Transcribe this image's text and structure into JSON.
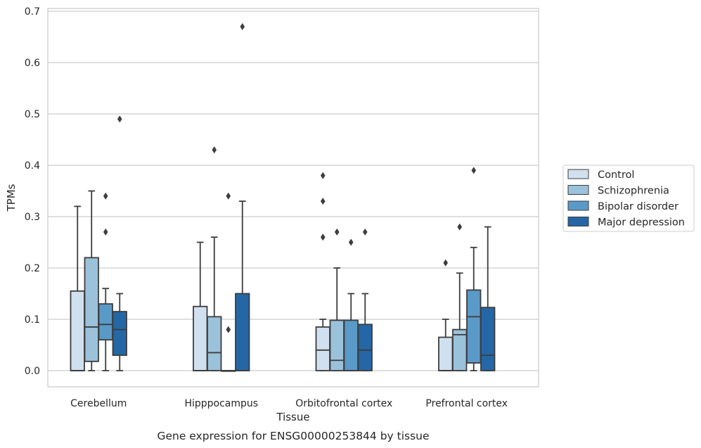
{
  "chart_data": {
    "type": "boxplot",
    "title": "",
    "caption": "Gene expression for ENSG00000253844 by tissue",
    "xlabel": "Tissue",
    "ylabel": "TPMs",
    "ylim": [
      -0.03,
      0.705
    ],
    "yticks": [
      "0.0",
      "0.1",
      "0.2",
      "0.3",
      "0.4",
      "0.5",
      "0.6",
      "0.7"
    ],
    "grid": true,
    "legend_position": "right",
    "categories": [
      "Cerebellum",
      "Hipppocampus",
      "Orbitofrontal cortex",
      "Prefrontal cortex"
    ],
    "series": [
      {
        "name": "Control",
        "color": "#d0e0ef",
        "boxes": [
          {
            "whislo": 0.0,
            "q1": 0.0,
            "med": 0.0,
            "q3": 0.155,
            "whishi": 0.32,
            "fliers": []
          },
          {
            "whislo": 0.0,
            "q1": 0.0,
            "med": 0.0,
            "q3": 0.125,
            "whishi": 0.25,
            "fliers": []
          },
          {
            "whislo": 0.0,
            "q1": 0.0,
            "med": 0.04,
            "q3": 0.085,
            "whishi": 0.1,
            "fliers": [
              0.26,
              0.33,
              0.38
            ]
          },
          {
            "whislo": 0.0,
            "q1": 0.0,
            "med": 0.0,
            "q3": 0.065,
            "whishi": 0.1,
            "fliers": [
              0.21
            ]
          }
        ]
      },
      {
        "name": "Schizophrenia",
        "color": "#9bc2db",
        "boxes": [
          {
            "whislo": 0.0,
            "q1": 0.018,
            "med": 0.085,
            "q3": 0.22,
            "whishi": 0.35,
            "fliers": []
          },
          {
            "whislo": 0.0,
            "q1": 0.0,
            "med": 0.035,
            "q3": 0.105,
            "whishi": 0.26,
            "fliers": [
              0.43
            ]
          },
          {
            "whislo": 0.0,
            "q1": 0.0,
            "med": 0.02,
            "q3": 0.098,
            "whishi": 0.2,
            "fliers": [
              0.27
            ]
          },
          {
            "whislo": 0.0,
            "q1": 0.0,
            "med": 0.07,
            "q3": 0.08,
            "whishi": 0.19,
            "fliers": [
              0.28
            ]
          }
        ]
      },
      {
        "name": "Bipolar disorder",
        "color": "#5a9ac8",
        "boxes": [
          {
            "whislo": 0.0,
            "q1": 0.06,
            "med": 0.09,
            "q3": 0.13,
            "whishi": 0.16,
            "fliers": [
              0.27,
              0.34
            ]
          },
          {
            "whislo": 0.0,
            "q1": 0.0,
            "med": 0.0,
            "q3": 0.0,
            "whishi": 0.0,
            "fliers": [
              0.08,
              0.34
            ]
          },
          {
            "whislo": 0.0,
            "q1": 0.0,
            "med": 0.0,
            "q3": 0.098,
            "whishi": 0.15,
            "fliers": [
              0.25
            ]
          },
          {
            "whislo": 0.0,
            "q1": 0.015,
            "med": 0.105,
            "q3": 0.157,
            "whishi": 0.24,
            "fliers": [
              0.39
            ]
          }
        ]
      },
      {
        "name": "Major depression",
        "color": "#2567a6",
        "boxes": [
          {
            "whislo": 0.0,
            "q1": 0.03,
            "med": 0.08,
            "q3": 0.115,
            "whishi": 0.15,
            "fliers": [
              0.49
            ]
          },
          {
            "whislo": 0.0,
            "q1": 0.0,
            "med": 0.0,
            "q3": 0.15,
            "whishi": 0.33,
            "fliers": [
              0.67
            ]
          },
          {
            "whislo": 0.0,
            "q1": 0.0,
            "med": 0.04,
            "q3": 0.09,
            "whishi": 0.15,
            "fliers": [
              0.27
            ]
          },
          {
            "whislo": 0.0,
            "q1": 0.0,
            "med": 0.03,
            "q3": 0.123,
            "whishi": 0.28,
            "fliers": []
          }
        ]
      }
    ]
  }
}
